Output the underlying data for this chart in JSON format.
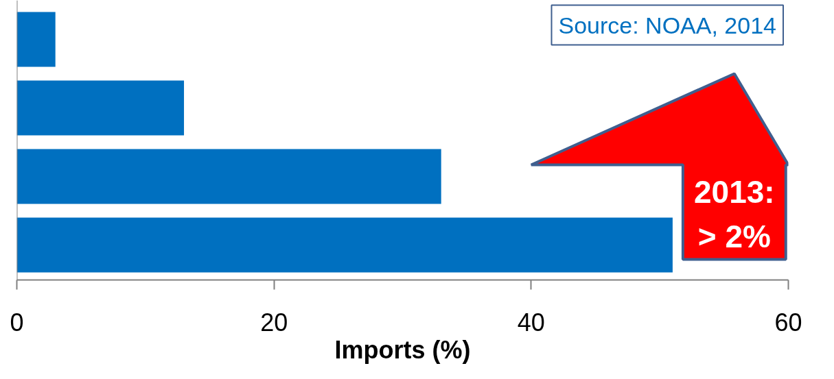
{
  "chart_data": {
    "type": "bar",
    "orientation": "horizontal",
    "categories": [
      null,
      null,
      null,
      null
    ],
    "values": [
      3,
      13,
      33,
      51
    ],
    "color": "#0070c0",
    "xlim": [
      0,
      60
    ],
    "xticks": [
      0,
      20,
      40,
      60
    ],
    "xlabel": "Imports (%)",
    "annotations": [
      "Source: NOAA, 2014",
      "2013:\n> 2%"
    ]
  }
}
